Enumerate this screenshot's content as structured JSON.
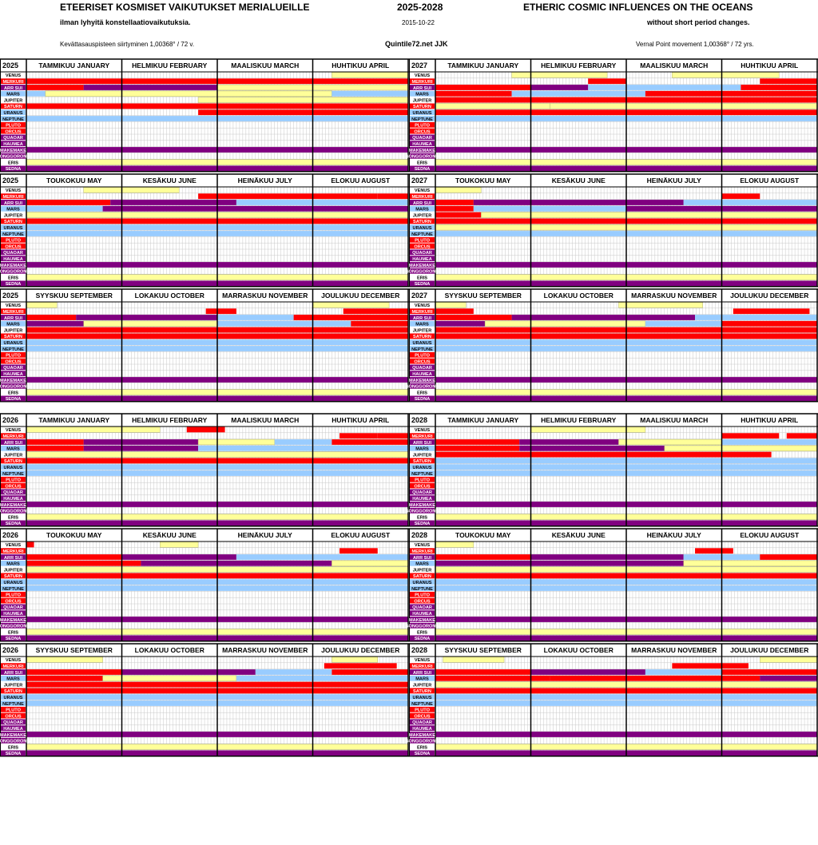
{
  "header": {
    "title_fi": "ETEERISET KOSMISET VAIKUTUKSET MERIALUEILLE",
    "years": "2025-2028",
    "title_en": "ETHERIC COSMIC INFLUENCES ON THE OCEANS",
    "subtitle_fi": "ilman lyhyitä konstellaatiovaikutuksia.",
    "date": "2015-10-22",
    "subtitle_en": "without short period changes.",
    "note_fi": "Kevättasauspisteen siirtyminen 1,00368° / 72 v.",
    "site": "Quintile72.net  JJK",
    "note_en": "Vernal Point movement 1,00368° / 72 yrs."
  },
  "rows": [
    "VENUS",
    "MERKURI",
    "ARR SUI",
    "MARS",
    "JUPITER",
    "SATURN",
    "URANUS",
    "NEPTUNE",
    "PLUTO",
    "ORCUS",
    "QUAOAR",
    "HAUMEA",
    "MAKEMAKE",
    "GONGGORONG",
    "ERIS",
    "SEDNA"
  ],
  "row_label_colors": [
    "#ffff99",
    "#ff0000",
    "#800080",
    "#99ccff",
    "#ffff99",
    "#ff0000",
    "#99ccff",
    "#99ccff",
    "#ff0000",
    "#ff0000",
    "#800080",
    "#800080",
    "#800080",
    "#800080",
    "#ffff99",
    "#800080"
  ],
  "colors": {
    "Y": "#ffff99",
    "R": "#ff0000",
    "P": "#800080",
    "B": "#99ccff"
  },
  "quarters": [
    {
      "year": "2025",
      "months": [
        "TAMMIKUU   JANUARY",
        "HELMIKUU  FEBRUARY",
        "MAALISKUU  MARCH",
        "HUHTIKUU   APRIL"
      ]
    },
    {
      "year": "2027",
      "months": [
        "TAMMIKUU   JANUARY",
        "HELMIKUU  FEBRUARY",
        "MAALISKUU  MARCH",
        "HUHTIKUU   APRIL"
      ]
    },
    {
      "year": "2025",
      "months": [
        "TOUKOKUU  MAY",
        "KESÄKUU  JUNE",
        "HEINÄKUU  JULY",
        "ELOKUU  AUGUST"
      ]
    },
    {
      "year": "2027",
      "months": [
        "TOUKOKUU  MAY",
        "KESÄKUU  JUNE",
        "HEINÄKUU  JULY",
        "ELOKUU  AUGUST"
      ]
    },
    {
      "year": "2025",
      "months": [
        "SYYSKUU  SEPTEMBER",
        "LOKAKUU  OCTOBER",
        "MARRASKUU NOVEMBER",
        "JOULUKUU  DECEMBER"
      ]
    },
    {
      "year": "2027",
      "months": [
        "SYYSKUU  SEPTEMBER",
        "LOKAKUU  OCTOBER",
        "MARRASKUU NOVEMBER",
        "JOULUKUU  DECEMBER"
      ]
    },
    {
      "year": "2026",
      "months": [
        "TAMMIKUU   JANUARY",
        "HELMIKUU  FEBRUARY",
        "MAALISKUU  MARCH",
        "HUHTIKUU   APRIL"
      ]
    },
    {
      "year": "2028",
      "months": [
        "TAMMIKUU   JANUARY",
        "HELMIKUU  FEBRUARY",
        "MAALISKUU  MARCH",
        "HUHTIKUU   APRIL"
      ]
    },
    {
      "year": "2026",
      "months": [
        "TOUKOKUU  MAY",
        "KESÄKUU  JUNE",
        "HEINÄKUU  JULY",
        "ELOKUU  AUGUST"
      ]
    },
    {
      "year": "2028",
      "months": [
        "TOUKOKUU  MAY",
        "KESÄKUU  JUNE",
        "HEINÄKUU  JULY",
        "ELOKUU  AUGUST"
      ]
    },
    {
      "year": "2026",
      "months": [
        "SYYSKUU  SEPTEMBER",
        "LOKAKUU  OCTOBER",
        "MARRASKUU NOVEMBER",
        "JOULUKUU  DECEMBER"
      ]
    },
    {
      "year": "2028",
      "months": [
        "SYYSKUU  SEPTEMBER",
        "LOKAKUU  OCTOBER",
        "MARRASKUU NOVEMBER",
        "JOULUKUU  DECEMBER"
      ]
    }
  ],
  "bars": [
    [
      [
        0,
        0.8,
        1.0,
        "Y"
      ],
      [
        1,
        0.0,
        0.25,
        "R"
      ],
      [
        1,
        0.25,
        1.0,
        "R"
      ],
      [
        2,
        0.0,
        0.15,
        "R"
      ],
      [
        2,
        0.15,
        0.5,
        "P"
      ],
      [
        2,
        0.5,
        1.0,
        "Y"
      ],
      [
        3,
        0.0,
        0.05,
        "B"
      ],
      [
        3,
        0.05,
        0.8,
        "Y"
      ],
      [
        3,
        0.8,
        1.0,
        "B"
      ],
      [
        4,
        0.45,
        1.0,
        "Y"
      ],
      [
        5,
        0.0,
        1.0,
        "R"
      ],
      [
        6,
        0.45,
        1.0,
        "R"
      ],
      [
        7,
        0.0,
        1.0,
        "B"
      ],
      [
        12,
        0.0,
        1.0,
        "P"
      ],
      [
        14,
        0.0,
        1.0,
        "Y"
      ],
      [
        15,
        0.0,
        1.0,
        "P"
      ]
    ],
    [
      [
        0,
        0.2,
        0.45,
        "Y"
      ],
      [
        0,
        0.62,
        0.9,
        "Y"
      ],
      [
        1,
        0.4,
        0.5,
        "R"
      ],
      [
        1,
        0.85,
        1.0,
        "R"
      ],
      [
        2,
        0.0,
        0.25,
        "R"
      ],
      [
        2,
        0.25,
        0.4,
        "P"
      ],
      [
        2,
        0.4,
        0.6,
        "B"
      ],
      [
        2,
        0.6,
        0.8,
        "B"
      ],
      [
        2,
        0.8,
        1.0,
        "R"
      ],
      [
        3,
        0.0,
        0.2,
        "R"
      ],
      [
        3,
        0.2,
        0.55,
        "B"
      ],
      [
        3,
        0.55,
        1.0,
        "R"
      ],
      [
        4,
        0.0,
        1.0,
        "R"
      ],
      [
        5,
        0.0,
        0.3,
        "Y"
      ],
      [
        5,
        0.3,
        1.0,
        "Y"
      ],
      [
        6,
        0.0,
        1.0,
        "R"
      ],
      [
        7,
        0.0,
        1.0,
        "B"
      ],
      [
        12,
        0.0,
        1.0,
        "P"
      ],
      [
        14,
        0.0,
        1.0,
        "Y"
      ],
      [
        15,
        0.0,
        1.0,
        "P"
      ]
    ],
    [
      [
        0,
        0.15,
        0.4,
        "Y"
      ],
      [
        1,
        0.45,
        0.92,
        "R"
      ],
      [
        1,
        0.92,
        1.0,
        "R"
      ],
      [
        2,
        0.0,
        0.22,
        "R"
      ],
      [
        2,
        0.22,
        0.55,
        "P"
      ],
      [
        2,
        0.55,
        1.0,
        "B"
      ],
      [
        3,
        0.0,
        0.2,
        "B"
      ],
      [
        3,
        0.2,
        1.0,
        "P"
      ],
      [
        4,
        0.0,
        0.25,
        "Y"
      ],
      [
        4,
        0.25,
        1.0,
        "Y"
      ],
      [
        5,
        0.0,
        1.0,
        "R"
      ],
      [
        6,
        0.0,
        1.0,
        "B"
      ],
      [
        7,
        0.0,
        1.0,
        "B"
      ],
      [
        12,
        0.0,
        1.0,
        "P"
      ],
      [
        14,
        0.0,
        1.0,
        "Y"
      ],
      [
        15,
        0.0,
        1.0,
        "P"
      ]
    ],
    [
      [
        0,
        0.0,
        0.12,
        "Y"
      ],
      [
        1,
        0.75,
        0.85,
        "R"
      ],
      [
        2,
        0.0,
        0.1,
        "R"
      ],
      [
        2,
        0.1,
        0.65,
        "P"
      ],
      [
        2,
        0.65,
        1.0,
        "B"
      ],
      [
        3,
        0.0,
        0.1,
        "R"
      ],
      [
        3,
        0.1,
        0.5,
        "B"
      ],
      [
        3,
        0.5,
        1.0,
        "P"
      ],
      [
        4,
        0.0,
        0.12,
        "R"
      ],
      [
        4,
        0.12,
        1.0,
        "Y"
      ],
      [
        5,
        0.0,
        1.0,
        "R"
      ],
      [
        6,
        0.0,
        1.0,
        "Y"
      ],
      [
        7,
        0.0,
        1.0,
        "B"
      ],
      [
        12,
        0.0,
        1.0,
        "P"
      ],
      [
        14,
        0.0,
        1.0,
        "Y"
      ],
      [
        15,
        0.0,
        1.0,
        "P"
      ]
    ],
    [
      [
        0,
        0.0,
        0.08,
        "Y"
      ],
      [
        0,
        0.75,
        0.95,
        "Y"
      ],
      [
        1,
        0.47,
        0.55,
        "R"
      ],
      [
        1,
        0.83,
        1.0,
        "R"
      ],
      [
        2,
        0.0,
        0.13,
        "R"
      ],
      [
        2,
        0.13,
        0.5,
        "P"
      ],
      [
        2,
        0.5,
        0.7,
        "B"
      ],
      [
        2,
        0.7,
        1.0,
        "R"
      ],
      [
        3,
        0.0,
        0.15,
        "P"
      ],
      [
        3,
        0.15,
        0.5,
        "Y"
      ],
      [
        3,
        0.5,
        0.85,
        "B"
      ],
      [
        3,
        0.85,
        1.0,
        "R"
      ],
      [
        4,
        0.0,
        1.0,
        "R"
      ],
      [
        5,
        0.0,
        1.0,
        "R"
      ],
      [
        6,
        0.0,
        1.0,
        "B"
      ],
      [
        7,
        0.0,
        1.0,
        "B"
      ],
      [
        12,
        0.0,
        1.0,
        "P"
      ],
      [
        14,
        0.0,
        1.0,
        "Y"
      ],
      [
        15,
        0.0,
        1.0,
        "P"
      ]
    ],
    [
      [
        0,
        0.0,
        0.08,
        "Y"
      ],
      [
        0,
        0.48,
        0.7,
        "Y"
      ],
      [
        1,
        0.0,
        0.1,
        "R"
      ],
      [
        1,
        0.78,
        0.98,
        "R"
      ],
      [
        2,
        0.0,
        0.2,
        "R"
      ],
      [
        2,
        0.2,
        0.68,
        "P"
      ],
      [
        2,
        0.68,
        0.8,
        "B"
      ],
      [
        2,
        0.8,
        1.0,
        "B"
      ],
      [
        3,
        0.0,
        0.13,
        "P"
      ],
      [
        3,
        0.13,
        0.55,
        "Y"
      ],
      [
        3,
        0.55,
        0.75,
        "B"
      ],
      [
        3,
        0.75,
        1.0,
        "R"
      ],
      [
        4,
        0.0,
        1.0,
        "R"
      ],
      [
        5,
        0.0,
        1.0,
        "R"
      ],
      [
        6,
        0.0,
        1.0,
        "B"
      ],
      [
        7,
        0.0,
        1.0,
        "B"
      ],
      [
        12,
        0.0,
        1.0,
        "P"
      ],
      [
        14,
        0.0,
        1.0,
        "Y"
      ],
      [
        15,
        0.0,
        1.0,
        "P"
      ]
    ],
    [
      [
        0,
        0.42,
        0.52,
        "R"
      ],
      [
        0,
        0.0,
        0.35,
        "Y"
      ],
      [
        1,
        0.82,
        0.92,
        "R"
      ],
      [
        1,
        0.92,
        1.0,
        "R"
      ],
      [
        2,
        0.0,
        0.15,
        "R"
      ],
      [
        2,
        0.15,
        0.45,
        "P"
      ],
      [
        2,
        0.45,
        0.65,
        "Y"
      ],
      [
        2,
        0.65,
        0.8,
        "B"
      ],
      [
        2,
        0.8,
        1.0,
        "R"
      ],
      [
        3,
        0.0,
        0.15,
        "R"
      ],
      [
        3,
        0.15,
        0.45,
        "P"
      ],
      [
        3,
        0.45,
        1.0,
        "B"
      ],
      [
        4,
        0.0,
        1.0,
        "Y"
      ],
      [
        5,
        0.0,
        1.0,
        "R"
      ],
      [
        6,
        0.0,
        1.0,
        "B"
      ],
      [
        7,
        0.0,
        1.0,
        "B"
      ],
      [
        12,
        0.0,
        1.0,
        "P"
      ],
      [
        14,
        0.0,
        1.0,
        "Y"
      ],
      [
        15,
        0.0,
        1.0,
        "P"
      ]
    ],
    [
      [
        0,
        0.25,
        0.55,
        "Y"
      ],
      [
        1,
        0.75,
        0.9,
        "R"
      ],
      [
        1,
        0.92,
        1.0,
        "R"
      ],
      [
        2,
        0.0,
        0.22,
        "R"
      ],
      [
        2,
        0.22,
        0.48,
        "P"
      ],
      [
        2,
        0.48,
        0.75,
        "Y"
      ],
      [
        2,
        0.75,
        1.0,
        "B"
      ],
      [
        3,
        0.0,
        0.22,
        "R"
      ],
      [
        3,
        0.22,
        0.6,
        "P"
      ],
      [
        3,
        0.6,
        1.0,
        "Y"
      ],
      [
        4,
        0.0,
        0.88,
        "R"
      ],
      [
        5,
        0.0,
        1.0,
        "B"
      ],
      [
        6,
        0.0,
        1.0,
        "B"
      ],
      [
        7,
        0.0,
        1.0,
        "B"
      ],
      [
        12,
        0.0,
        1.0,
        "P"
      ],
      [
        14,
        0.0,
        1.0,
        "Y"
      ],
      [
        15,
        0.0,
        1.0,
        "P"
      ]
    ],
    [
      [
        0,
        0.0,
        0.02,
        "R"
      ],
      [
        0,
        0.35,
        0.45,
        "Y"
      ],
      [
        1,
        0.82,
        0.92,
        "R"
      ],
      [
        2,
        0.0,
        0.25,
        "R"
      ],
      [
        2,
        0.25,
        0.55,
        "P"
      ],
      [
        2,
        0.55,
        1.0,
        "B"
      ],
      [
        3,
        0.0,
        0.3,
        "R"
      ],
      [
        3,
        0.3,
        0.8,
        "P"
      ],
      [
        3,
        0.8,
        1.0,
        "Y"
      ],
      [
        4,
        0.0,
        1.0,
        "Y"
      ],
      [
        5,
        0.0,
        1.0,
        "R"
      ],
      [
        6,
        0.0,
        1.0,
        "B"
      ],
      [
        7,
        0.0,
        1.0,
        "B"
      ],
      [
        12,
        0.0,
        1.0,
        "P"
      ],
      [
        14,
        0.0,
        1.0,
        "Y"
      ],
      [
        15,
        0.0,
        1.0,
        "P"
      ]
    ],
    [
      [
        0,
        0.0,
        0.1,
        "Y"
      ],
      [
        1,
        0.68,
        0.78,
        "R"
      ],
      [
        2,
        0.0,
        0.25,
        "R"
      ],
      [
        2,
        0.25,
        0.65,
        "P"
      ],
      [
        2,
        0.65,
        0.85,
        "B"
      ],
      [
        2,
        0.85,
        1.0,
        "R"
      ],
      [
        3,
        0.0,
        0.65,
        "P"
      ],
      [
        3,
        0.65,
        1.0,
        "Y"
      ],
      [
        4,
        0.0,
        1.0,
        "Y"
      ],
      [
        5,
        0.0,
        1.0,
        "R"
      ],
      [
        6,
        0.0,
        1.0,
        "B"
      ],
      [
        7,
        0.0,
        1.0,
        "B"
      ],
      [
        12,
        0.0,
        1.0,
        "P"
      ],
      [
        14,
        0.0,
        1.0,
        "Y"
      ],
      [
        15,
        0.0,
        1.0,
        "P"
      ]
    ],
    [
      [
        0,
        0.0,
        0.2,
        "Y"
      ],
      [
        0,
        0.8,
        0.92,
        "Y"
      ],
      [
        1,
        0.78,
        0.97,
        "R"
      ],
      [
        2,
        0.0,
        0.25,
        "R"
      ],
      [
        2,
        0.25,
        0.6,
        "P"
      ],
      [
        2,
        0.6,
        0.8,
        "B"
      ],
      [
        2,
        0.8,
        1.0,
        "R"
      ],
      [
        3,
        0.0,
        0.2,
        "R"
      ],
      [
        3,
        0.2,
        0.55,
        "Y"
      ],
      [
        3,
        0.55,
        1.0,
        "B"
      ],
      [
        4,
        0.0,
        1.0,
        "R"
      ],
      [
        5,
        0.0,
        1.0,
        "R"
      ],
      [
        6,
        0.0,
        1.0,
        "B"
      ],
      [
        7,
        0.0,
        1.0,
        "B"
      ],
      [
        12,
        0.0,
        1.0,
        "P"
      ],
      [
        14,
        0.0,
        1.0,
        "Y"
      ],
      [
        15,
        0.0,
        1.0,
        "P"
      ]
    ],
    [
      [
        0,
        0.02,
        0.18,
        "Y"
      ],
      [
        0,
        0.85,
        1.0,
        "Y"
      ],
      [
        1,
        0.62,
        0.82,
        "R"
      ],
      [
        2,
        0.0,
        0.25,
        "R"
      ],
      [
        2,
        0.25,
        0.55,
        "P"
      ],
      [
        2,
        0.55,
        0.75,
        "B"
      ],
      [
        2,
        0.75,
        1.0,
        "R"
      ],
      [
        3,
        0.0,
        0.3,
        "R"
      ],
      [
        3,
        0.3,
        0.85,
        "R"
      ],
      [
        3,
        0.85,
        1.0,
        "P"
      ],
      [
        4,
        0.0,
        1.0,
        "Y"
      ],
      [
        5,
        0.0,
        1.0,
        "R"
      ],
      [
        6,
        0.0,
        1.0,
        "B"
      ],
      [
        7,
        0.0,
        1.0,
        "B"
      ],
      [
        12,
        0.0,
        1.0,
        "P"
      ],
      [
        14,
        0.0,
        1.0,
        "Y"
      ],
      [
        15,
        0.0,
        1.0,
        "P"
      ]
    ]
  ]
}
